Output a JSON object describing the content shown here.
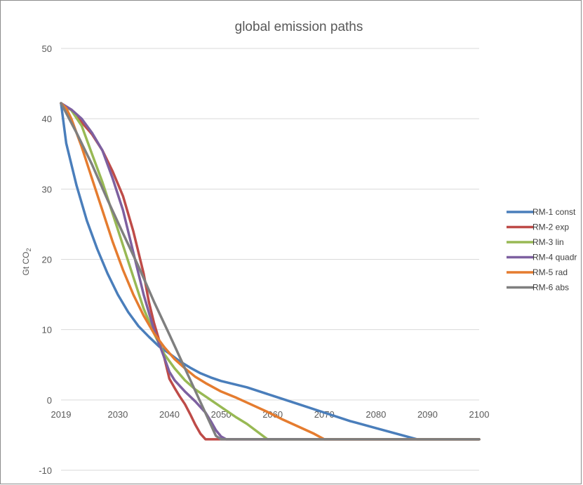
{
  "chart_data": {
    "type": "line",
    "title": "global emission paths",
    "ylabel": "Gt CO",
    "ylabel_sub": "2",
    "xlim": [
      2019,
      2100
    ],
    "ylim": [
      -10,
      50
    ],
    "x_ticks": [
      2019,
      2030,
      2040,
      2050,
      2060,
      2070,
      2080,
      2090,
      2100
    ],
    "y_ticks": [
      -10,
      0,
      10,
      20,
      30,
      40,
      50
    ],
    "grid": true,
    "legend_position": "right",
    "series": [
      {
        "name": "RM-1 const",
        "color": "#4a7ebb",
        "points": [
          [
            2019,
            42.2
          ],
          [
            2020,
            36.5
          ],
          [
            2022,
            30.5
          ],
          [
            2024,
            25.5
          ],
          [
            2026,
            21.5
          ],
          [
            2028,
            18
          ],
          [
            2030,
            15
          ],
          [
            2032,
            12.5
          ],
          [
            2034,
            10.5
          ],
          [
            2036,
            9
          ],
          [
            2038,
            7.6
          ],
          [
            2040,
            6.6
          ],
          [
            2042,
            5.5
          ],
          [
            2044,
            4.6
          ],
          [
            2046,
            3.8
          ],
          [
            2048,
            3.2
          ],
          [
            2050,
            2.7
          ],
          [
            2055,
            1.8
          ],
          [
            2060,
            0.6
          ],
          [
            2065,
            -0.6
          ],
          [
            2070,
            -1.8
          ],
          [
            2075,
            -3
          ],
          [
            2080,
            -4
          ],
          [
            2085,
            -5
          ],
          [
            2088,
            -5.6
          ],
          [
            2100,
            -5.6
          ]
        ]
      },
      {
        "name": "RM-2 exp",
        "color": "#be4b48",
        "points": [
          [
            2019,
            42.2
          ],
          [
            2021,
            41.2
          ],
          [
            2023,
            39.5
          ],
          [
            2025,
            37.8
          ],
          [
            2027,
            35.5
          ],
          [
            2029,
            32.5
          ],
          [
            2031,
            29
          ],
          [
            2033,
            24
          ],
          [
            2035,
            18
          ],
          [
            2036,
            14
          ],
          [
            2037,
            11
          ],
          [
            2038,
            8.5
          ],
          [
            2039,
            6
          ],
          [
            2040,
            3
          ],
          [
            2041,
            1.7
          ],
          [
            2042,
            0.5
          ],
          [
            2043,
            -0.6
          ],
          [
            2044,
            -2
          ],
          [
            2045,
            -3.5
          ],
          [
            2046,
            -4.8
          ],
          [
            2047,
            -5.6
          ],
          [
            2050,
            -5.6
          ],
          [
            2100,
            -5.6
          ]
        ]
      },
      {
        "name": "RM-3 lin",
        "color": "#98b954",
        "points": [
          [
            2019,
            42.2
          ],
          [
            2021,
            41.2
          ],
          [
            2023,
            39
          ],
          [
            2025,
            35
          ],
          [
            2027,
            31
          ],
          [
            2029,
            26.5
          ],
          [
            2031,
            22
          ],
          [
            2033,
            17.5
          ],
          [
            2035,
            13
          ],
          [
            2037,
            9.5
          ],
          [
            2039,
            6.5
          ],
          [
            2041,
            4.5
          ],
          [
            2043,
            2.8
          ],
          [
            2045,
            1.5
          ],
          [
            2047,
            0.5
          ],
          [
            2049,
            -0.5
          ],
          [
            2051,
            -1.5
          ],
          [
            2053,
            -2.5
          ],
          [
            2055,
            -3.4
          ],
          [
            2057,
            -4.5
          ],
          [
            2059,
            -5.6
          ],
          [
            2100,
            -5.6
          ]
        ]
      },
      {
        "name": "RM-4 quadr",
        "color": "#7d60a0",
        "points": [
          [
            2019,
            42.2
          ],
          [
            2021,
            41.3
          ],
          [
            2023,
            40
          ],
          [
            2025,
            38
          ],
          [
            2027,
            35.5
          ],
          [
            2029,
            31.5
          ],
          [
            2031,
            27
          ],
          [
            2033,
            21
          ],
          [
            2035,
            15
          ],
          [
            2037,
            10
          ],
          [
            2039,
            6
          ],
          [
            2040,
            4
          ],
          [
            2041,
            2.8
          ],
          [
            2043,
            1.2
          ],
          [
            2045,
            -0.2
          ],
          [
            2047,
            -1.8
          ],
          [
            2048,
            -3
          ],
          [
            2049,
            -4.3
          ],
          [
            2050,
            -5.2
          ],
          [
            2051,
            -5.6
          ],
          [
            2100,
            -5.6
          ]
        ]
      },
      {
        "name": "RM-5 rad",
        "color": "#e57c2f",
        "points": [
          [
            2019,
            42.2
          ],
          [
            2020,
            41.5
          ],
          [
            2021,
            40
          ],
          [
            2023,
            36
          ],
          [
            2025,
            31.5
          ],
          [
            2027,
            27
          ],
          [
            2029,
            22.5
          ],
          [
            2031,
            18.5
          ],
          [
            2033,
            15
          ],
          [
            2035,
            12
          ],
          [
            2037,
            9.5
          ],
          [
            2039,
            7.5
          ],
          [
            2041,
            5.8
          ],
          [
            2043,
            4.5
          ],
          [
            2045,
            3.3
          ],
          [
            2047,
            2.4
          ],
          [
            2050,
            1.2
          ],
          [
            2053,
            0.3
          ],
          [
            2056,
            -0.7
          ],
          [
            2059,
            -1.7
          ],
          [
            2062,
            -2.8
          ],
          [
            2065,
            -3.8
          ],
          [
            2068,
            -4.8
          ],
          [
            2070,
            -5.6
          ],
          [
            2100,
            -5.6
          ]
        ]
      },
      {
        "name": "RM-6 abs",
        "color": "#7f7f7f",
        "points": [
          [
            2019,
            42.2
          ],
          [
            2022,
            38
          ],
          [
            2025,
            33.5
          ],
          [
            2028,
            28.5
          ],
          [
            2031,
            23.7
          ],
          [
            2034,
            19
          ],
          [
            2037,
            14
          ],
          [
            2040,
            9.3
          ],
          [
            2043,
            4.5
          ],
          [
            2046,
            -0.3
          ],
          [
            2048,
            -3.5
          ],
          [
            2049,
            -5.1
          ],
          [
            2050,
            -5.6
          ],
          [
            2100,
            -5.6
          ]
        ]
      }
    ]
  }
}
